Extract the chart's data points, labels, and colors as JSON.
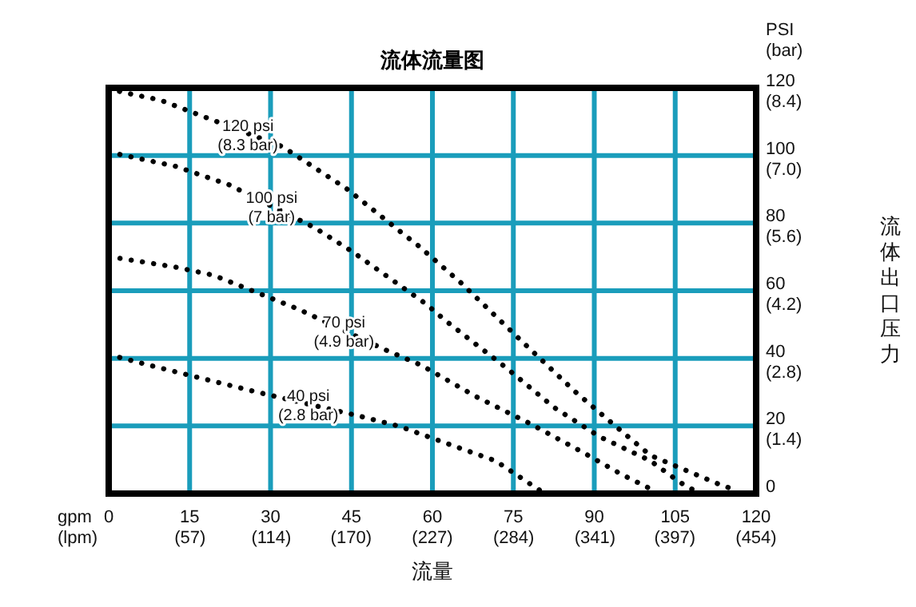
{
  "chart_data": {
    "type": "line",
    "title": "流体流量图",
    "xlabel": "流量",
    "y2label": "流体出口压力",
    "xlim": [
      0,
      120
    ],
    "ylim": [
      0,
      120
    ],
    "xticks": [
      0,
      15,
      30,
      45,
      60,
      75,
      90,
      105,
      120
    ],
    "x2lim": [
      0,
      454
    ],
    "x2ticks": [
      {
        "value": 57,
        "label": "(57)"
      },
      {
        "value": 114,
        "label": "(114)"
      },
      {
        "value": 170,
        "label": "(170)"
      },
      {
        "value": 227,
        "label": "(227)"
      },
      {
        "value": 284,
        "label": "(284)"
      },
      {
        "value": 341,
        "label": "(341)"
      },
      {
        "value": 397,
        "label": "(397)"
      },
      {
        "value": 454,
        "label": "(454)"
      }
    ],
    "yticks": [
      0,
      20,
      40,
      60,
      80,
      100,
      120
    ],
    "y2lim": [
      0,
      8.4
    ],
    "y2ticks": [
      {
        "value": 1.4,
        "label": "(1.4)"
      },
      {
        "value": 2.8,
        "label": "(2.8)"
      },
      {
        "value": 4.2,
        "label": "(4.2)"
      },
      {
        "value": 5.6,
        "label": "(5.6)"
      },
      {
        "value": 7.0,
        "label": "(7.0)"
      },
      {
        "value": 8.4,
        "label": "(8.4)"
      }
    ],
    "grid": true,
    "line_style": "dotted",
    "marker": "none",
    "series": [
      {
        "color": "#000000",
        "x": [
          0,
          2.6,
          9.5,
          32.2,
          44.1,
          54.9,
          57.4,
          65.3,
          76.1,
          86.5,
          93.4,
          100.4,
          113.2,
          116.1
        ],
        "values": [
          120,
          118.7,
          116.4,
          102.6,
          90.2,
          76.4,
          73.3,
          62.3,
          45.8,
          30.1,
          20.7,
          11.3,
          2.7,
          1.1
        ]
      },
      {
        "color": "#000000",
        "x": [
          0,
          12.4,
          22.3,
          38.1,
          45,
          58.9,
          62.3,
          73.7,
          82.6,
          91,
          100.4,
          105.8,
          109
        ],
        "values": [
          101,
          96.8,
          91.3,
          78.7,
          71.7,
          56,
          51.3,
          37.2,
          25.4,
          16.8,
          9.7,
          3.4,
          0.5
        ]
      },
      {
        "color": "#000000",
        "x": [
          0,
          12.4,
          19.4,
          35.2,
          51,
          57.9,
          68.2,
          78.1,
          88,
          94.9,
          100.8
        ],
        "values": [
          70.1,
          67,
          64.6,
          54.5,
          42.7,
          38,
          28.6,
          20.7,
          12.1,
          5.8,
          1.1
        ]
      },
      {
        "color": "#000000",
        "x": [
          0,
          7.5,
          17.4,
          27.3,
          46,
          53.9,
          64.8,
          71.7,
          77.6,
          80.6
        ],
        "values": [
          41.1,
          38,
          34,
          30.1,
          23.1,
          19.9,
          13.6,
          9.7,
          3.4,
          0.3
        ]
      }
    ],
    "annotations": [
      {
        "text": "120 psi\n(8.3 bar)",
        "x": 25.8,
        "y": 106.4
      },
      {
        "text": "100 psi\n(7 bar)",
        "x": 30.2,
        "y": 85
      },
      {
        "text": "70 psi\n(4.9 bar)",
        "x": 43.6,
        "y": 48.2
      },
      {
        "text": "40 psi\n(2.8 bar)",
        "x": 37,
        "y": 26.5
      },
      "gpm",
      "(lpm)",
      "PSI\n(bar)"
    ]
  }
}
